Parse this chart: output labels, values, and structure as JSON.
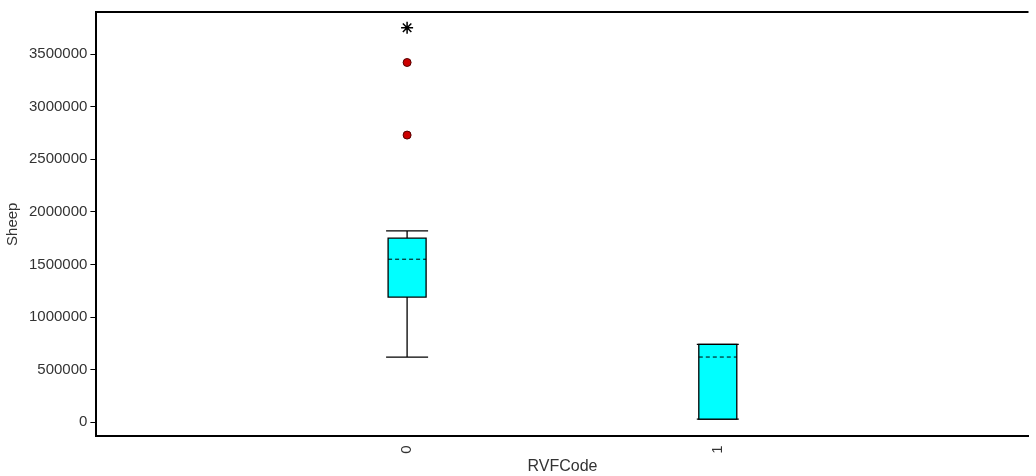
{
  "chart_data": {
    "type": "box",
    "xlabel": "RVFCode",
    "ylabel": "Sheep",
    "categories": [
      "0",
      "1"
    ],
    "color": "#00ffff",
    "boxes": [
      {
        "low": 620000,
        "q1": 1190000,
        "median": 1550000,
        "q3": 1750000,
        "high": 1820000,
        "outliers": [
          2730000,
          3420000,
          3750000
        ]
      },
      {
        "low": 30000,
        "q1": 30000,
        "median": 620000,
        "q3": 740000,
        "high": 740000
      }
    ],
    "ylim": [
      -135000,
      3900000
    ],
    "yticks": [
      0,
      500000,
      1000000,
      1500000,
      2000000,
      2500000,
      3000000,
      3500000
    ],
    "grid": false,
    "legend": false
  }
}
